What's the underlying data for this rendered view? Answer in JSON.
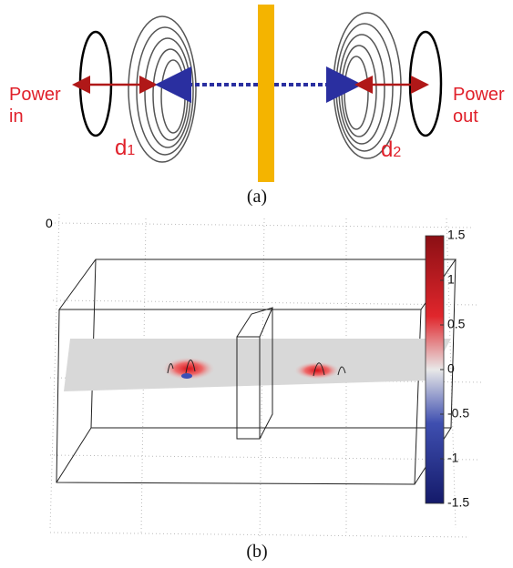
{
  "panel_a": {
    "left_label": [
      "Power",
      "in"
    ],
    "right_label": [
      "Power",
      "out"
    ],
    "d_left": {
      "base": "d",
      "sub": "1"
    },
    "d_right": {
      "base": "d",
      "sub": "2"
    },
    "caption": "(a)"
  },
  "panel_b": {
    "corner_label": "0",
    "colorbar_ticks": [
      1.5,
      1,
      0.5,
      0,
      -0.5,
      -1,
      -1.5
    ],
    "caption": "(b)"
  }
}
